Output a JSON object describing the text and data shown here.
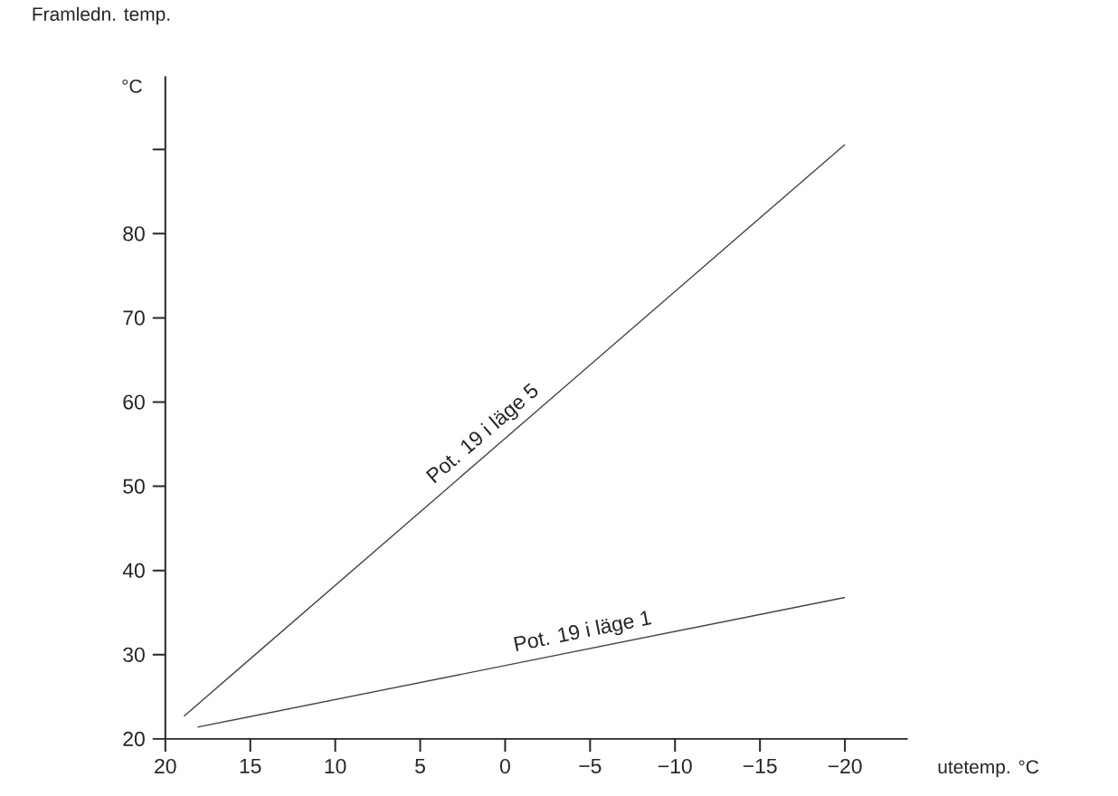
{
  "chart_data": {
    "type": "line",
    "title": "Framledn. temp.",
    "ylabel": "°C",
    "xlabel": "utetemp. °C",
    "xlim": [
      20,
      -23.7
    ],
    "ylim": [
      20,
      98.7
    ],
    "xticks": [
      20,
      15,
      10,
      5,
      0,
      {
        "value": -5,
        "label": "−5"
      },
      {
        "value": -10,
        "label": "−10"
      },
      {
        "value": -15,
        "label": "−15"
      },
      {
        "value": -20,
        "label": "−20"
      }
    ],
    "yticks": [
      20,
      30,
      40,
      50,
      60,
      70,
      80,
      {
        "value": 90,
        "label": null
      }
    ],
    "legend": false,
    "grid": false,
    "marker": "none",
    "line_style": "solid",
    "series": [
      {
        "name": "Pot. 19 i läge 5",
        "color": "#444444",
        "x": [
          18.9,
          -20
        ],
        "values": [
          22.7,
          90.6
        ]
      },
      {
        "name": "Pot. 19 i läge 1",
        "color": "#444444",
        "x": [
          18.1,
          -20
        ],
        "values": [
          21.4,
          36.8
        ]
      }
    ]
  }
}
